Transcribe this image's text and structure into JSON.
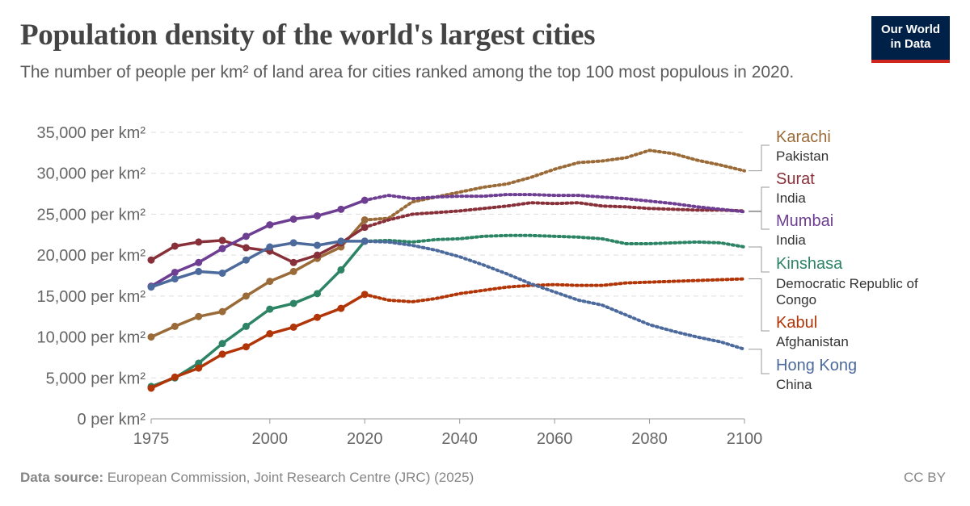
{
  "header": {
    "title": "Population density of the world's largest cities",
    "subtitle": "The number of people per km² of land area for cities ranked among the top 100 most populous in 2020.",
    "logo": "Our World in Data"
  },
  "footer": {
    "source_label": "Data source:",
    "source": "European Commission, Joint Research Centre (JRC) (2025)",
    "license": "CC BY"
  },
  "chart_data": {
    "type": "line",
    "title": "Population density of the world's largest cities",
    "xlim": [
      1975,
      2100
    ],
    "ylim": [
      0,
      35000
    ],
    "x_ticks": [
      "1975",
      "2000",
      "2020",
      "2040",
      "2060",
      "2080",
      "2100"
    ],
    "y_ticks": [
      "0 per km²",
      "5,000 per km²",
      "10,000 per km²",
      "15,000 per km²",
      "20,000 per km²",
      "25,000 per km²",
      "30,000 per km²",
      "35,000 per km²"
    ],
    "grid": "horizontal dashed",
    "legend": "right, inline labels",
    "observed_years": [
      1975,
      1980,
      1985,
      1990,
      1995,
      2000,
      2005,
      2010,
      2015,
      2020
    ],
    "projected_years": [
      2020,
      2025,
      2030,
      2035,
      2040,
      2045,
      2050,
      2055,
      2060,
      2065,
      2070,
      2075,
      2080,
      2085,
      2090,
      2095,
      2100
    ],
    "projection_style": "dotted",
    "series": [
      {
        "name": "Karachi",
        "country": "Pakistan",
        "color": "#9a6b38",
        "observed": [
          10000,
          11300,
          12500,
          13100,
          15000,
          16800,
          18000,
          19600,
          21000,
          24300
        ],
        "projected": [
          24300,
          24500,
          26500,
          27100,
          27700,
          28300,
          28700,
          29500,
          30500,
          31300,
          31500,
          31900,
          32800,
          32400,
          31600,
          31000,
          30300
        ]
      },
      {
        "name": "Surat",
        "country": "India",
        "color": "#883039",
        "observed": [
          19400,
          21100,
          21600,
          21800,
          20900,
          20500,
          19100,
          20000,
          21500,
          23400
        ],
        "projected": [
          23400,
          24300,
          25000,
          25200,
          25400,
          25700,
          26000,
          26400,
          26300,
          26400,
          26000,
          25900,
          25700,
          25600,
          25500,
          25500,
          25400
        ]
      },
      {
        "name": "Mumbai",
        "country": "India",
        "color": "#6d3e91",
        "observed": [
          16200,
          17900,
          19100,
          20800,
          22300,
          23700,
          24400,
          24800,
          25600,
          26700
        ],
        "projected": [
          26700,
          27300,
          26900,
          27100,
          27200,
          27200,
          27400,
          27400,
          27300,
          27300,
          27100,
          26900,
          26600,
          26300,
          25900,
          25600,
          25300
        ]
      },
      {
        "name": "Kinshasa",
        "country": "Democratic Republic of Congo",
        "color": "#2c8465",
        "observed": [
          3950,
          5000,
          6800,
          9200,
          11300,
          13400,
          14100,
          15300,
          18200,
          21700
        ],
        "projected": [
          21700,
          21800,
          21600,
          21900,
          22000,
          22300,
          22400,
          22400,
          22300,
          22200,
          22000,
          21400,
          21400,
          21500,
          21600,
          21500,
          21000
        ]
      },
      {
        "name": "Kabul",
        "country": "Afghanistan",
        "color": "#b13507",
        "observed": [
          3750,
          5100,
          6200,
          7900,
          8800,
          10400,
          11200,
          12400,
          13500,
          15200
        ],
        "projected": [
          15200,
          14500,
          14300,
          14700,
          15300,
          15700,
          16100,
          16300,
          16400,
          16300,
          16300,
          16600,
          16700,
          16800,
          16900,
          17000,
          17100
        ]
      },
      {
        "name": "Hong Kong",
        "country": "China",
        "color": "#4c6a9c",
        "observed": [
          16100,
          17100,
          18000,
          17800,
          19400,
          21000,
          21500,
          21200,
          21700,
          21700
        ],
        "projected": [
          21700,
          21600,
          21200,
          20600,
          19800,
          18800,
          17700,
          16500,
          15500,
          14500,
          13900,
          12700,
          11500,
          10700,
          10000,
          9400,
          8500
        ]
      }
    ]
  }
}
